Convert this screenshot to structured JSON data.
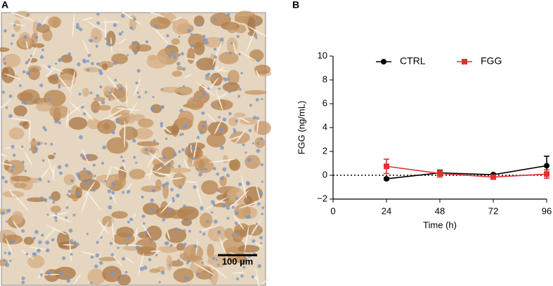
{
  "panel_a": {
    "label": "A",
    "scale_bar": "100 µm"
  },
  "chart_data": {
    "type": "line",
    "panel_label": "B",
    "xlabel": "Time (h)",
    "ylabel": "FGG (ng/mL)",
    "x": [
      24,
      48,
      72,
      96
    ],
    "xlim": [
      0,
      96
    ],
    "xticks": [
      0,
      24,
      48,
      72,
      96
    ],
    "ylim": [
      -2,
      10
    ],
    "yticks": [
      {
        "value": -2,
        "label": "−2"
      },
      0,
      2,
      4,
      6,
      8,
      10
    ],
    "reference_line": 0,
    "series": [
      {
        "name": "CTRL",
        "color": "#000000",
        "marker": "circle",
        "values": [
          -0.3,
          0.2,
          0.05,
          0.8
        ],
        "errors": [
          0.1,
          0.2,
          0.1,
          0.8
        ]
      },
      {
        "name": "FGG",
        "color": "#e03030",
        "marker": "square",
        "values": [
          0.75,
          0.15,
          -0.15,
          0.1
        ],
        "errors": [
          0.6,
          0.3,
          0.15,
          0.35
        ]
      }
    ]
  }
}
